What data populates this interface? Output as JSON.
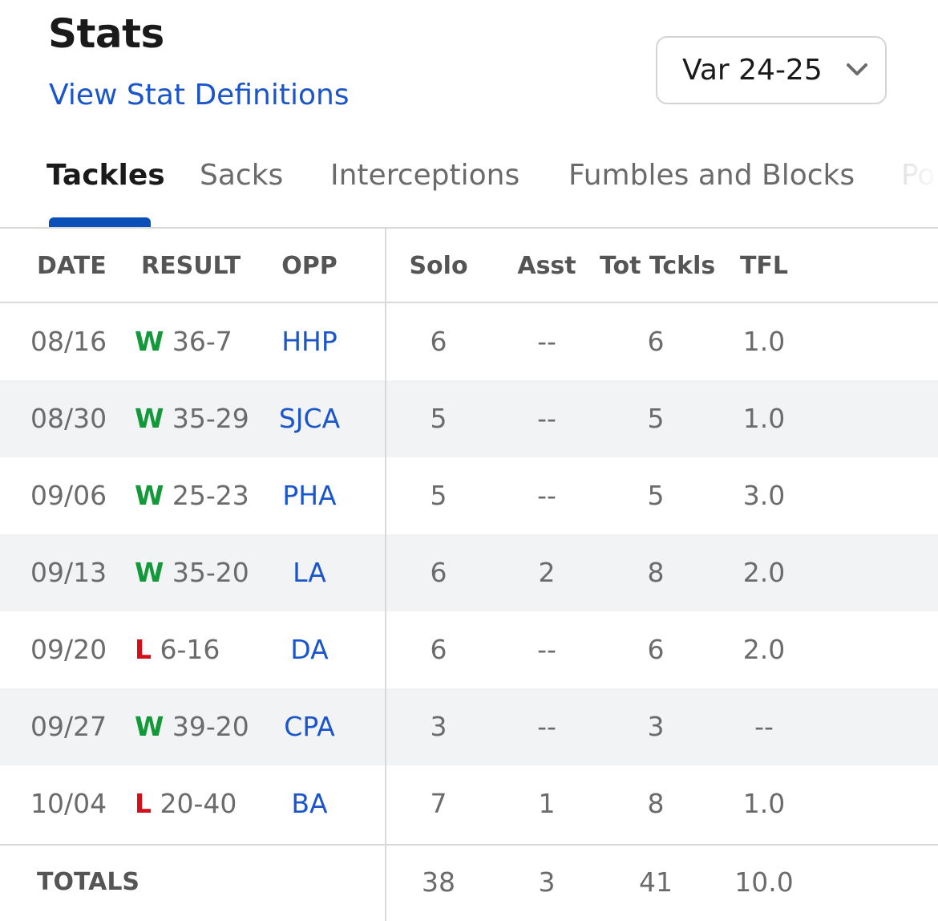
{
  "header": {
    "title": "Stats",
    "defs_link": "View Stat Definitions",
    "season": "Var 24-25"
  },
  "tabs": [
    {
      "label": "Tackles",
      "active": true
    },
    {
      "label": "Sacks",
      "active": false
    },
    {
      "label": "Interceptions",
      "active": false
    },
    {
      "label": "Fumbles and Blocks",
      "active": false
    },
    {
      "label": "Po",
      "active": false
    }
  ],
  "colors": {
    "accent": "#0b4fb8",
    "link": "#1a56c9",
    "win": "#13993a",
    "loss": "#d0101a"
  },
  "table": {
    "columns": [
      "DATE",
      "RESULT",
      "OPP",
      "Solo",
      "Asst",
      "Tot Tckls",
      "TFL"
    ],
    "rows": [
      {
        "date": "08/16",
        "res": "W",
        "score": "36-7",
        "opp": "HHP",
        "solo": "6",
        "asst": "--",
        "tot": "6",
        "tfl": "1.0"
      },
      {
        "date": "08/30",
        "res": "W",
        "score": "35-29",
        "opp": "SJCA",
        "solo": "5",
        "asst": "--",
        "tot": "5",
        "tfl": "1.0"
      },
      {
        "date": "09/06",
        "res": "W",
        "score": "25-23",
        "opp": "PHA",
        "solo": "5",
        "asst": "--",
        "tot": "5",
        "tfl": "3.0"
      },
      {
        "date": "09/13",
        "res": "W",
        "score": "35-20",
        "opp": "LA",
        "solo": "6",
        "asst": "2",
        "tot": "8",
        "tfl": "2.0"
      },
      {
        "date": "09/20",
        "res": "L",
        "score": "6-16",
        "opp": "DA",
        "solo": "6",
        "asst": "--",
        "tot": "6",
        "tfl": "2.0"
      },
      {
        "date": "09/27",
        "res": "W",
        "score": "39-20",
        "opp": "CPA",
        "solo": "3",
        "asst": "--",
        "tot": "3",
        "tfl": "--"
      },
      {
        "date": "10/04",
        "res": "L",
        "score": "20-40",
        "opp": "BA",
        "solo": "7",
        "asst": "1",
        "tot": "8",
        "tfl": "1.0"
      }
    ],
    "totals": {
      "label": "TOTALS",
      "solo": "38",
      "asst": "3",
      "tot": "41",
      "tfl": "10.0"
    }
  }
}
